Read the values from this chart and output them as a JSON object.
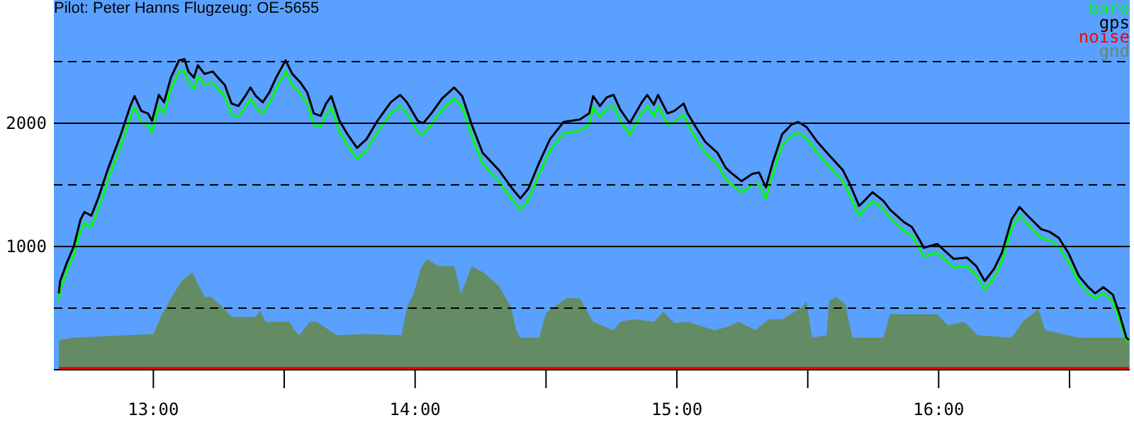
{
  "chart_data": {
    "type": "line",
    "title": "Pilot: Peter Hanns Flugzeug: OE-5655",
    "xlim": [
      12.62,
      16.73
    ],
    "ylim": [
      0,
      3000
    ],
    "xticks": [
      {
        "value": 13,
        "label": "13:00"
      },
      {
        "value": 13.5,
        "label": null
      },
      {
        "value": 14,
        "label": "14:00"
      },
      {
        "value": 14.5,
        "label": null
      },
      {
        "value": 15,
        "label": "15:00"
      },
      {
        "value": 15.5,
        "label": null
      },
      {
        "value": 16,
        "label": "16:00"
      },
      {
        "value": 16.5,
        "label": null
      }
    ],
    "yticks": [
      1000,
      2000
    ],
    "ref_lines": [
      {
        "axis": "y",
        "value": 1000,
        "line_style": "solid"
      },
      {
        "axis": "y",
        "value": 2000,
        "line_style": "solid"
      },
      {
        "axis": "y",
        "value": 500,
        "line_style": "dashed"
      },
      {
        "axis": "y",
        "value": 1500,
        "line_style": "dashed"
      },
      {
        "axis": "y",
        "value": 2500,
        "line_style": "dashed"
      }
    ],
    "legend": "top right",
    "marker": "none",
    "series": [
      {
        "name": "baro",
        "color": "#00ff00",
        "x": [
          12.639,
          12.644,
          12.67,
          12.696,
          12.722,
          12.737,
          12.763,
          12.789,
          12.825,
          12.876,
          12.912,
          12.928,
          12.954,
          12.979,
          12.995,
          13.021,
          13.041,
          13.067,
          13.098,
          13.119,
          13.134,
          13.155,
          13.17,
          13.196,
          13.227,
          13.247,
          13.273,
          13.299,
          13.325,
          13.351,
          13.371,
          13.392,
          13.418,
          13.443,
          13.469,
          13.505,
          13.531,
          13.562,
          13.588,
          13.613,
          13.639,
          13.66,
          13.68,
          13.711,
          13.742,
          13.778,
          13.814,
          13.856,
          13.907,
          13.943,
          13.969,
          14.01,
          14.031,
          14.062,
          14.103,
          14.149,
          14.18,
          14.216,
          14.258,
          14.32,
          14.371,
          14.402,
          14.433,
          14.474,
          14.515,
          14.567,
          14.629,
          14.665,
          14.68,
          14.706,
          14.732,
          14.758,
          14.784,
          14.82,
          14.866,
          14.887,
          14.912,
          14.928,
          14.964,
          14.99,
          15.026,
          15.041,
          15.072,
          15.108,
          15.155,
          15.186,
          15.206,
          15.247,
          15.289,
          15.314,
          15.34,
          15.366,
          15.402,
          15.438,
          15.464,
          15.495,
          15.536,
          15.582,
          15.634,
          15.66,
          15.696,
          15.711,
          15.747,
          15.789,
          15.814,
          15.866,
          15.897,
          15.928,
          15.943,
          15.995,
          16.031,
          16.057,
          16.108,
          16.144,
          16.176,
          16.212,
          16.242,
          16.279,
          16.309,
          16.34,
          16.392,
          16.423,
          16.459,
          16.495,
          16.536,
          16.572,
          16.598,
          16.629,
          16.665,
          16.691,
          16.717,
          16.727
        ],
        "values": [
          560,
          650,
          800,
          930,
          1130,
          1190,
          1160,
          1300,
          1530,
          1820,
          2050,
          2130,
          2010,
          1990,
          1930,
          2140,
          2080,
          2280,
          2420,
          2430,
          2330,
          2280,
          2380,
          2310,
          2330,
          2280,
          2220,
          2070,
          2050,
          2130,
          2200,
          2130,
          2080,
          2160,
          2280,
          2420,
          2310,
          2240,
          2160,
          1990,
          1970,
          2070,
          2130,
          1930,
          1820,
          1710,
          1780,
          1930,
          2080,
          2140,
          2080,
          1930,
          1910,
          1990,
          2110,
          2200,
          2130,
          1900,
          1670,
          1530,
          1380,
          1300,
          1380,
          1590,
          1780,
          1920,
          1940,
          1990,
          2130,
          2050,
          2120,
          2140,
          2020,
          1910,
          2080,
          2140,
          2060,
          2140,
          1990,
          2010,
          2070,
          1990,
          1880,
          1760,
          1670,
          1550,
          1510,
          1440,
          1500,
          1510,
          1390,
          1590,
          1820,
          1900,
          1920,
          1880,
          1760,
          1650,
          1530,
          1420,
          1250,
          1290,
          1370,
          1300,
          1230,
          1130,
          1090,
          980,
          920,
          950,
          880,
          830,
          840,
          770,
          650,
          750,
          880,
          1150,
          1250,
          1180,
          1070,
          1050,
          1000,
          880,
          710,
          620,
          580,
          620,
          560,
          400,
          240,
          230
        ]
      },
      {
        "name": "gps",
        "color": "#000000",
        "x": [
          12.639,
          12.644,
          12.67,
          12.696,
          12.722,
          12.737,
          12.763,
          12.789,
          12.825,
          12.876,
          12.912,
          12.928,
          12.954,
          12.979,
          12.995,
          13.021,
          13.041,
          13.067,
          13.098,
          13.119,
          13.134,
          13.155,
          13.17,
          13.196,
          13.227,
          13.247,
          13.273,
          13.299,
          13.325,
          13.351,
          13.371,
          13.392,
          13.418,
          13.443,
          13.469,
          13.505,
          13.531,
          13.562,
          13.588,
          13.613,
          13.639,
          13.66,
          13.68,
          13.711,
          13.742,
          13.778,
          13.814,
          13.856,
          13.907,
          13.943,
          13.969,
          14.01,
          14.031,
          14.062,
          14.103,
          14.149,
          14.18,
          14.216,
          14.258,
          14.32,
          14.371,
          14.402,
          14.433,
          14.474,
          14.515,
          14.567,
          14.629,
          14.665,
          14.68,
          14.706,
          14.732,
          14.758,
          14.784,
          14.82,
          14.866,
          14.887,
          14.912,
          14.928,
          14.964,
          14.99,
          15.026,
          15.041,
          15.072,
          15.108,
          15.155,
          15.186,
          15.206,
          15.247,
          15.289,
          15.314,
          15.34,
          15.366,
          15.402,
          15.438,
          15.464,
          15.495,
          15.536,
          15.582,
          15.634,
          15.66,
          15.696,
          15.711,
          15.747,
          15.789,
          15.814,
          15.866,
          15.897,
          15.928,
          15.943,
          15.995,
          16.031,
          16.057,
          16.108,
          16.144,
          16.176,
          16.212,
          16.242,
          16.279,
          16.309,
          16.34,
          16.392,
          16.423,
          16.459,
          16.495,
          16.536,
          16.572,
          16.598,
          16.629,
          16.665,
          16.691,
          16.717,
          16.727
        ],
        "values": [
          620,
          720,
          870,
          1000,
          1220,
          1280,
          1250,
          1390,
          1620,
          1910,
          2140,
          2220,
          2100,
          2080,
          2020,
          2230,
          2170,
          2370,
          2510,
          2520,
          2420,
          2370,
          2470,
          2400,
          2420,
          2370,
          2310,
          2160,
          2140,
          2220,
          2290,
          2220,
          2170,
          2250,
          2370,
          2510,
          2400,
          2330,
          2250,
          2080,
          2060,
          2160,
          2220,
          2020,
          1910,
          1800,
          1870,
          2020,
          2170,
          2230,
          2170,
          2020,
          2000,
          2080,
          2200,
          2290,
          2220,
          1990,
          1760,
          1620,
          1470,
          1390,
          1470,
          1680,
          1870,
          2010,
          2030,
          2080,
          2220,
          2140,
          2210,
          2230,
          2110,
          2000,
          2170,
          2230,
          2150,
          2230,
          2080,
          2100,
          2160,
          2080,
          1970,
          1850,
          1760,
          1640,
          1600,
          1530,
          1590,
          1600,
          1480,
          1680,
          1910,
          1990,
          2010,
          1970,
          1850,
          1740,
          1620,
          1510,
          1330,
          1360,
          1440,
          1370,
          1300,
          1200,
          1160,
          1050,
          990,
          1020,
          950,
          900,
          910,
          840,
          720,
          820,
          950,
          1220,
          1320,
          1250,
          1140,
          1120,
          1070,
          950,
          760,
          670,
          620,
          670,
          610,
          450,
          260,
          240
        ]
      },
      {
        "name": "noise",
        "color": "#ff0000",
        "x": [
          12.639,
          16.727
        ],
        "values": [
          0,
          0
        ]
      },
      {
        "name": "gnd",
        "type": "area",
        "color": "#648c64",
        "x": [
          12.639,
          12.691,
          13.0,
          13.031,
          13.067,
          13.108,
          13.149,
          13.17,
          13.196,
          13.222,
          13.263,
          13.299,
          13.392,
          13.407,
          13.428,
          13.521,
          13.536,
          13.557,
          13.598,
          13.624,
          13.701,
          13.804,
          13.948,
          13.969,
          13.995,
          14.021,
          14.046,
          14.088,
          14.149,
          14.175,
          14.191,
          14.216,
          14.268,
          14.32,
          14.366,
          14.387,
          14.402,
          14.474,
          14.5,
          14.577,
          14.629,
          14.68,
          14.758,
          14.784,
          14.835,
          14.912,
          14.948,
          14.99,
          15.041,
          15.144,
          15.196,
          15.237,
          15.299,
          15.351,
          15.402,
          15.48,
          15.495,
          15.516,
          15.572,
          15.582,
          15.608,
          15.644,
          15.67,
          15.789,
          15.814,
          15.995,
          16.036,
          16.098,
          16.149,
          16.279,
          16.32,
          16.381,
          16.407,
          16.536,
          16.727
        ],
        "values": [
          240,
          260,
          290,
          440,
          580,
          720,
          790,
          700,
          590,
          590,
          510,
          430,
          430,
          480,
          390,
          390,
          330,
          280,
          390,
          390,
          280,
          290,
          280,
          510,
          620,
          820,
          900,
          840,
          840,
          620,
          700,
          840,
          780,
          680,
          510,
          320,
          260,
          260,
          460,
          580,
          580,
          390,
          320,
          390,
          410,
          390,
          470,
          380,
          390,
          320,
          350,
          390,
          320,
          410,
          410,
          510,
          560,
          260,
          280,
          560,
          590,
          530,
          260,
          260,
          450,
          450,
          360,
          390,
          280,
          260,
          390,
          490,
          320,
          260,
          260
        ]
      }
    ]
  }
}
